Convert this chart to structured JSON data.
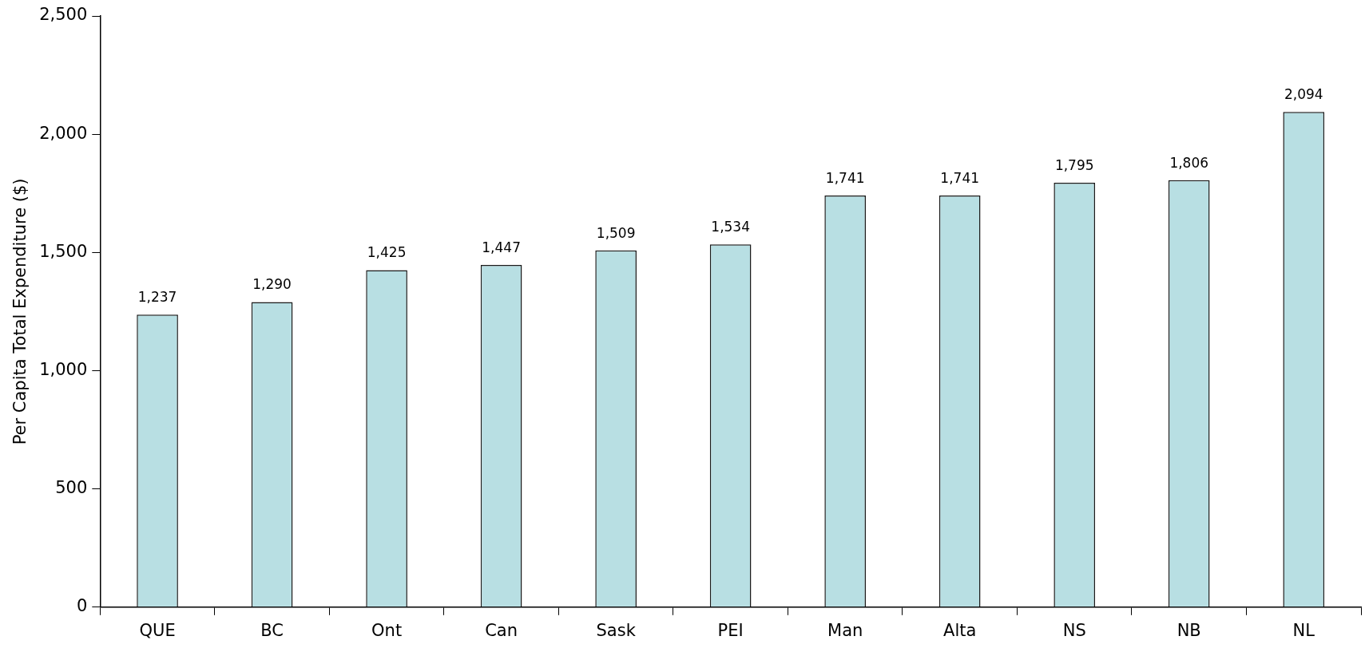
{
  "chart_data": {
    "type": "bar",
    "ylabel": "Per Capita Total Expenditure ($)",
    "categories": [
      "QUE",
      "BC",
      "Ont",
      "Can",
      "Sask",
      "PEI",
      "Man",
      "Alta",
      "NS",
      "NB",
      "NL"
    ],
    "values": [
      1237,
      1290,
      1425,
      1447,
      1509,
      1534,
      1741,
      1741,
      1795,
      1806,
      2094
    ],
    "color": "#b8dfe3",
    "ylim": [
      0,
      2500
    ],
    "yticks": [
      {
        "value": 0,
        "label": "0"
      },
      {
        "value": 500,
        "label": "500"
      },
      {
        "value": 1000,
        "label": "1,000"
      },
      {
        "value": 1500,
        "label": "1,500"
      },
      {
        "value": 2000,
        "label": "2,000"
      },
      {
        "value": 2500,
        "label": "2,500"
      }
    ],
    "value_labels": [
      "1,237",
      "1,290",
      "1,425",
      "1,447",
      "1,509",
      "1,534",
      "1,741",
      "1,741",
      "1,795",
      "1,806",
      "2,094"
    ],
    "grid": false,
    "legend": false
  }
}
